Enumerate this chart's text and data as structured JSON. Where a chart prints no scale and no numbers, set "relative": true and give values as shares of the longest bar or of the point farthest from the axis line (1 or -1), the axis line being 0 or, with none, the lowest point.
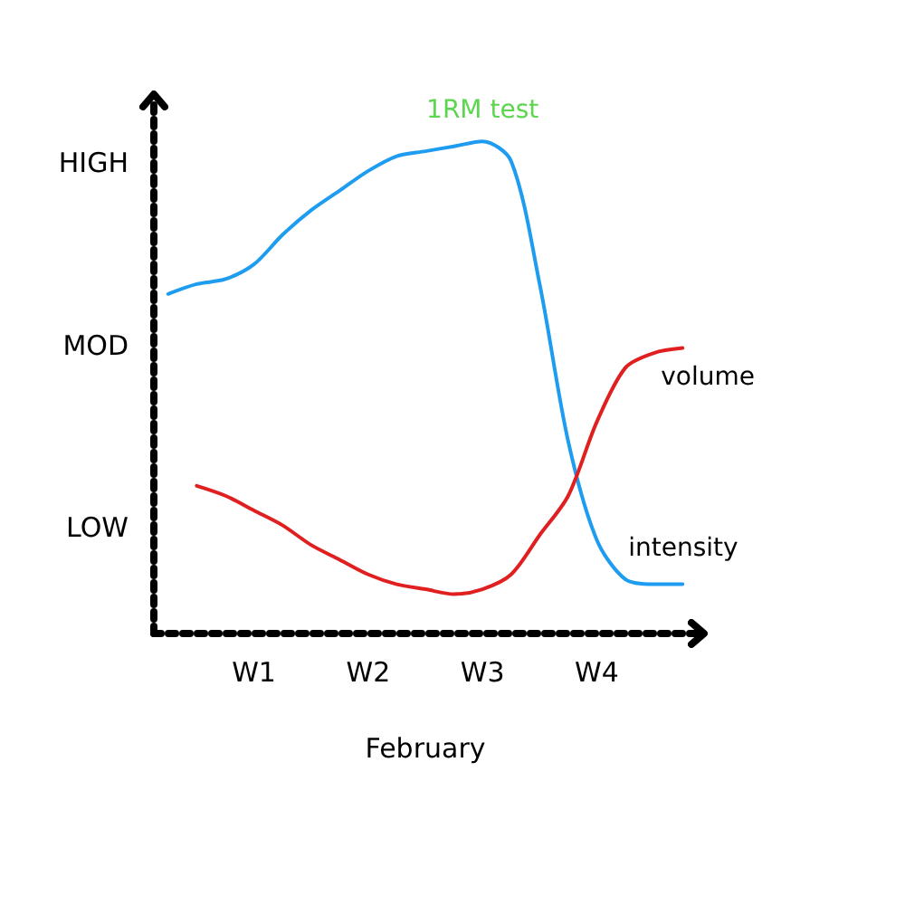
{
  "chart_data": {
    "type": "line",
    "relative": true,
    "xlabel": "February",
    "categories": [
      null,
      null,
      null,
      "W1",
      null,
      null,
      null,
      "W2",
      null,
      null,
      null,
      "W3",
      null,
      null,
      null,
      "W4",
      null,
      null,
      null
    ],
    "grid": false,
    "legend": false,
    "marker": "none",
    "line_style": "solid",
    "annotations": [
      {
        "text": "1RM test",
        "x": "W3",
        "y": 1.0
      },
      "LOW",
      "MOD",
      "HIGH"
    ],
    "series": [
      {
        "name": "intensity",
        "color": "#1e9cf0",
        "values": [
          0.69,
          0.71,
          0.72,
          0.75,
          0.81,
          0.86,
          0.9,
          0.94,
          0.97,
          0.98,
          0.99,
          1.0,
          0.96,
          0.71,
          0.39,
          0.19,
          0.11,
          0.1,
          0.1
        ]
      },
      {
        "name": "volume",
        "color": "#e02020",
        "values": [
          null,
          0.3,
          0.28,
          0.25,
          0.22,
          0.18,
          0.15,
          0.12,
          0.1,
          0.09,
          0.08,
          0.09,
          0.12,
          0.2,
          0.28,
          0.43,
          0.54,
          0.57,
          0.58
        ]
      }
    ]
  }
}
